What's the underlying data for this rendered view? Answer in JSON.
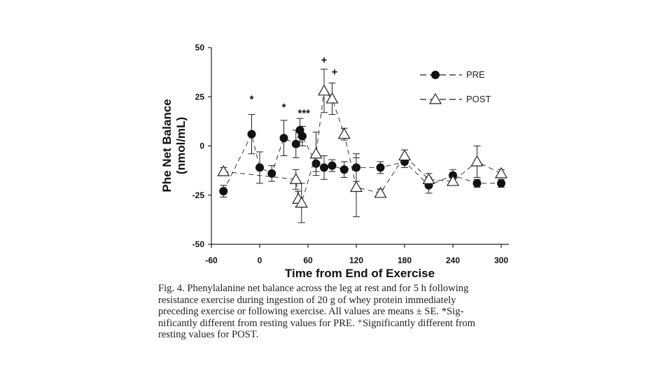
{
  "chart_data": {
    "type": "line",
    "title": "",
    "xlabel": "Time from End of Exercise",
    "ylabel_line1": "Phe Net Balance",
    "ylabel_line2": "(nmol/mL)",
    "xlim": [
      -60,
      300
    ],
    "ylim": [
      -50,
      50
    ],
    "x_ticks": [
      -60,
      0,
      60,
      120,
      180,
      240,
      300
    ],
    "y_ticks": [
      50,
      25,
      0,
      -25,
      -50
    ],
    "series": [
      {
        "name": "PRE",
        "marker": "filled-circle",
        "points": [
          {
            "x": -45,
            "y": -23,
            "err": 3
          },
          {
            "x": -10,
            "y": 6,
            "err": 10
          },
          {
            "x": 0,
            "y": -11,
            "err": 8
          },
          {
            "x": 15,
            "y": -14,
            "err": 4
          },
          {
            "x": 30,
            "y": 4,
            "err": 9
          },
          {
            "x": 45,
            "y": 1,
            "err": 7
          },
          {
            "x": 50,
            "y": 8,
            "err": 6
          },
          {
            "x": 53,
            "y": 5,
            "err": 5
          },
          {
            "x": 70,
            "y": -9,
            "err": 4
          },
          {
            "x": 80,
            "y": -11,
            "err": 6
          },
          {
            "x": 90,
            "y": -10,
            "err": 3
          },
          {
            "x": 105,
            "y": -12,
            "err": 4
          },
          {
            "x": 120,
            "y": -11,
            "err": 7
          },
          {
            "x": 150,
            "y": -11,
            "err": 3
          },
          {
            "x": 180,
            "y": -8,
            "err": 3
          },
          {
            "x": 210,
            "y": -20,
            "err": 4
          },
          {
            "x": 240,
            "y": -15,
            "err": 3
          },
          {
            "x": 270,
            "y": -19,
            "err": 2
          },
          {
            "x": 300,
            "y": -19,
            "err": 2
          }
        ]
      },
      {
        "name": "POST",
        "marker": "open-triangle",
        "points": [
          {
            "x": -45,
            "y": -13,
            "err": 2
          },
          {
            "x": 45,
            "y": -17,
            "err": 5
          },
          {
            "x": 48,
            "y": -27,
            "err": 4
          },
          {
            "x": 52,
            "y": -29,
            "err": 10
          },
          {
            "x": 70,
            "y": -4,
            "err": 11
          },
          {
            "x": 80,
            "y": 28,
            "err": 11
          },
          {
            "x": 90,
            "y": 24,
            "err": 8
          },
          {
            "x": 105,
            "y": 6,
            "err": 3
          },
          {
            "x": 120,
            "y": -21,
            "err": 15
          },
          {
            "x": 150,
            "y": -24,
            "err": 2
          },
          {
            "x": 180,
            "y": -5,
            "err": 3
          },
          {
            "x": 210,
            "y": -17,
            "err": 3
          },
          {
            "x": 240,
            "y": -18,
            "err": 2
          },
          {
            "x": 270,
            "y": -8,
            "err": 8
          },
          {
            "x": 300,
            "y": -14,
            "err": 2
          }
        ]
      }
    ],
    "annotations": [
      {
        "text": "*",
        "x": -10,
        "y": 22
      },
      {
        "text": "*",
        "x": 30,
        "y": 18
      },
      {
        "text": "***",
        "x": 55,
        "y": 15
      },
      {
        "text": "+",
        "x": 80,
        "y": 42
      },
      {
        "text": "+",
        "x": 93,
        "y": 36
      }
    ],
    "legend": {
      "position": "top-right",
      "entries": [
        "PRE",
        "POST"
      ]
    }
  },
  "caption": {
    "lines": [
      "Fig. 4. Phenylalanine net balance across the leg at rest and for 5 h following",
      "resistance exercise during ingestion of 20 g of whey protein immediately",
      "preceding exercise or following exercise. All values are means ± SE. *Sig-",
      "nificantly different from resting values for PRE. ⁺Significantly different from",
      "resting values for POST."
    ]
  },
  "colors": {
    "ink": "#111111",
    "background": "#ffffff"
  }
}
